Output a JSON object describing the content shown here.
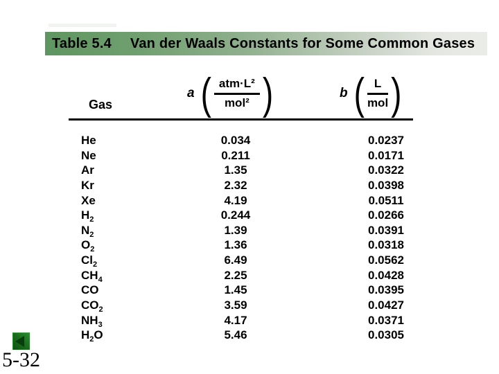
{
  "slide": {
    "title_bar": {
      "label": "Table 5.4",
      "title": "Van der Waals Constants for Some Common Gases"
    },
    "page_number": "5-32",
    "nav_button": "back-navigation"
  },
  "colors": {
    "title_bar_green": "#5e9560",
    "title_bar_fade": "#ebece9",
    "nav_button_green": "#1b701f",
    "nav_triangle_green": "#073d0b",
    "text": "#000000"
  },
  "table": {
    "gas_header": "Gas",
    "col_a": {
      "symbol": "a",
      "unit_numerator": "atm·L²",
      "unit_denominator": "mol²"
    },
    "col_b": {
      "symbol": "b",
      "unit_numerator": "L",
      "unit_denominator": "mol"
    },
    "rows": [
      {
        "gas": "He",
        "a": "0.034",
        "b": "0.0237"
      },
      {
        "gas": "Ne",
        "a": "0.211",
        "b": "0.0171"
      },
      {
        "gas": "Ar",
        "a": "1.35",
        "b": "0.0322"
      },
      {
        "gas": "Kr",
        "a": "2.32",
        "b": "0.0398"
      },
      {
        "gas": "Xe",
        "a": "4.19",
        "b": "0.0511"
      },
      {
        "gas": "H2",
        "a": "0.244",
        "b": "0.0266"
      },
      {
        "gas": "N2",
        "a": "1.39",
        "b": "0.0391"
      },
      {
        "gas": "O2",
        "a": "1.36",
        "b": "0.0318"
      },
      {
        "gas": "Cl2",
        "a": "6.49",
        "b": "0.0562"
      },
      {
        "gas": "CH4",
        "a": "2.25",
        "b": "0.0428"
      },
      {
        "gas": "CO",
        "a": "1.45",
        "b": "0.0395"
      },
      {
        "gas": "CO2",
        "a": "3.59",
        "b": "0.0427"
      },
      {
        "gas": "NH3",
        "a": "4.17",
        "b": "0.0371"
      },
      {
        "gas": "H2O",
        "a": "5.46",
        "b": "0.0305"
      }
    ]
  }
}
